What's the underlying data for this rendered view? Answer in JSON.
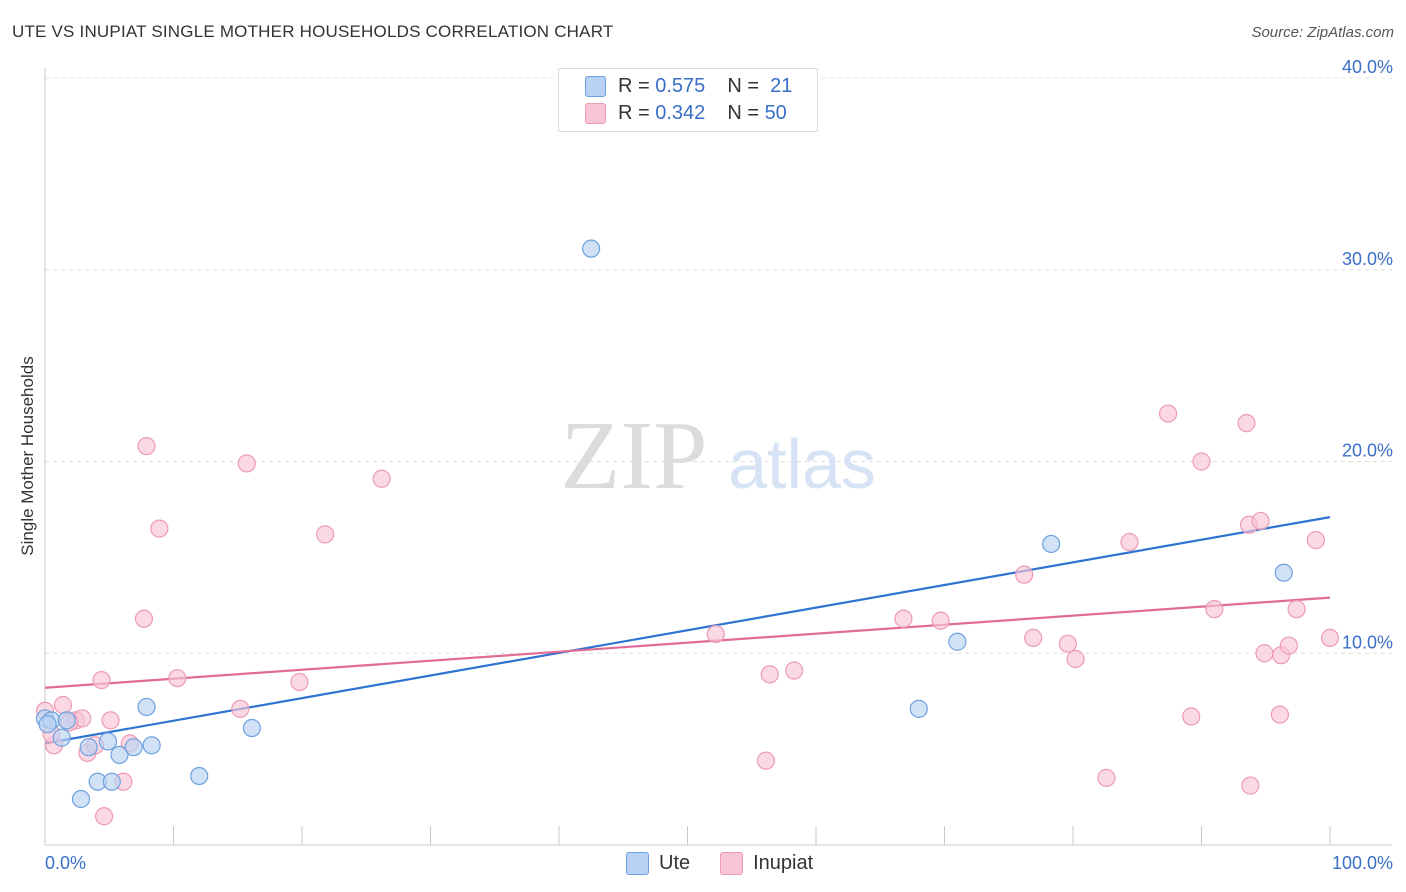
{
  "title": "UTE VS INUPIAT SINGLE MOTHER HOUSEHOLDS CORRELATION CHART",
  "source": "Source: ZipAtlas.com",
  "watermark": {
    "zip": "ZIP",
    "atlas": "atlas"
  },
  "legend": {
    "r_label": "R =",
    "n_label": "N =",
    "rows": [
      {
        "r": "0.575",
        "n": "21"
      },
      {
        "r": "0.342",
        "n": "50"
      }
    ]
  },
  "chart_data": {
    "type": "scatter",
    "title": "UTE VS INUPIAT SINGLE MOTHER HOUSEHOLDS CORRELATION CHART",
    "xlabel": "",
    "ylabel": "Single Mother Households",
    "xlim": [
      0,
      100
    ],
    "ylim": [
      0,
      40
    ],
    "x_tick_labels": [
      "0.0%",
      "100.0%"
    ],
    "y_ticks": [
      10,
      20,
      30,
      40
    ],
    "y_tick_labels": [
      "10.0%",
      "20.0%",
      "30.0%",
      "40.0%"
    ],
    "grid": "horizontal dashed",
    "legend_placement": "top-center",
    "series": [
      {
        "name": "Ute",
        "color": "#6fa0e0",
        "fill": "#b9d2f3",
        "line_color": "#2e74d0",
        "r": 0.575,
        "n": 21,
        "trend": {
          "x": [
            0,
            100
          ],
          "y": [
            5.3,
            17.1
          ]
        },
        "points": [
          [
            0,
            6.6
          ],
          [
            0.5,
            6.5
          ],
          [
            1.3,
            5.6
          ],
          [
            1.7,
            6.5
          ],
          [
            2.8,
            2.4
          ],
          [
            3.4,
            5.1
          ],
          [
            4.1,
            3.3
          ],
          [
            4.9,
            5.4
          ],
          [
            5.2,
            3.3
          ],
          [
            5.8,
            4.7
          ],
          [
            6.9,
            5.1
          ],
          [
            7.9,
            7.2
          ],
          [
            8.3,
            5.2
          ],
          [
            12.0,
            3.6
          ],
          [
            16.1,
            6.1
          ],
          [
            42.5,
            31.1
          ],
          [
            68.0,
            7.1
          ],
          [
            71.0,
            10.6
          ],
          [
            78.3,
            15.7
          ],
          [
            96.4,
            14.2
          ],
          [
            0.2,
            6.3
          ]
        ]
      },
      {
        "name": "Inupiat",
        "color": "#ee9ab5",
        "fill": "#f8c5d6",
        "line_color": "#e06a98",
        "r": 0.342,
        "n": 50,
        "trend": {
          "x": [
            0,
            100
          ],
          "y": [
            8.2,
            12.9
          ]
        },
        "points": [
          [
            0,
            7.0
          ],
          [
            0.7,
            5.2
          ],
          [
            1.4,
            7.3
          ],
          [
            2.4,
            6.5
          ],
          [
            2.9,
            6.6
          ],
          [
            3.3,
            4.8
          ],
          [
            3.9,
            5.2
          ],
          [
            4.4,
            8.6
          ],
          [
            4.6,
            1.5
          ],
          [
            5.1,
            6.5
          ],
          [
            6.1,
            3.3
          ],
          [
            6.6,
            5.3
          ],
          [
            7.7,
            11.8
          ],
          [
            7.9,
            20.8
          ],
          [
            8.9,
            16.5
          ],
          [
            10.3,
            8.7
          ],
          [
            15.2,
            7.1
          ],
          [
            15.7,
            19.9
          ],
          [
            19.8,
            8.5
          ],
          [
            21.8,
            16.2
          ],
          [
            26.2,
            19.1
          ],
          [
            52.2,
            11.0
          ],
          [
            56.1,
            4.4
          ],
          [
            56.4,
            8.9
          ],
          [
            58.3,
            9.1
          ],
          [
            66.8,
            11.8
          ],
          [
            69.7,
            11.7
          ],
          [
            76.2,
            14.1
          ],
          [
            76.9,
            10.8
          ],
          [
            79.6,
            10.5
          ],
          [
            80.2,
            9.7
          ],
          [
            82.6,
            3.5
          ],
          [
            84.4,
            15.8
          ],
          [
            87.4,
            22.5
          ],
          [
            89.2,
            6.7
          ],
          [
            90.0,
            20.0
          ],
          [
            91.0,
            12.3
          ],
          [
            93.5,
            22.0
          ],
          [
            93.7,
            16.7
          ],
          [
            94.6,
            16.9
          ],
          [
            94.9,
            10.0
          ],
          [
            93.8,
            3.1
          ],
          [
            96.1,
            6.8
          ],
          [
            96.2,
            9.9
          ],
          [
            96.8,
            10.4
          ],
          [
            97.4,
            12.3
          ],
          [
            98.9,
            15.9
          ],
          [
            100,
            10.8
          ],
          [
            0.5,
            5.8
          ],
          [
            1.9,
            6.4
          ]
        ]
      }
    ]
  }
}
